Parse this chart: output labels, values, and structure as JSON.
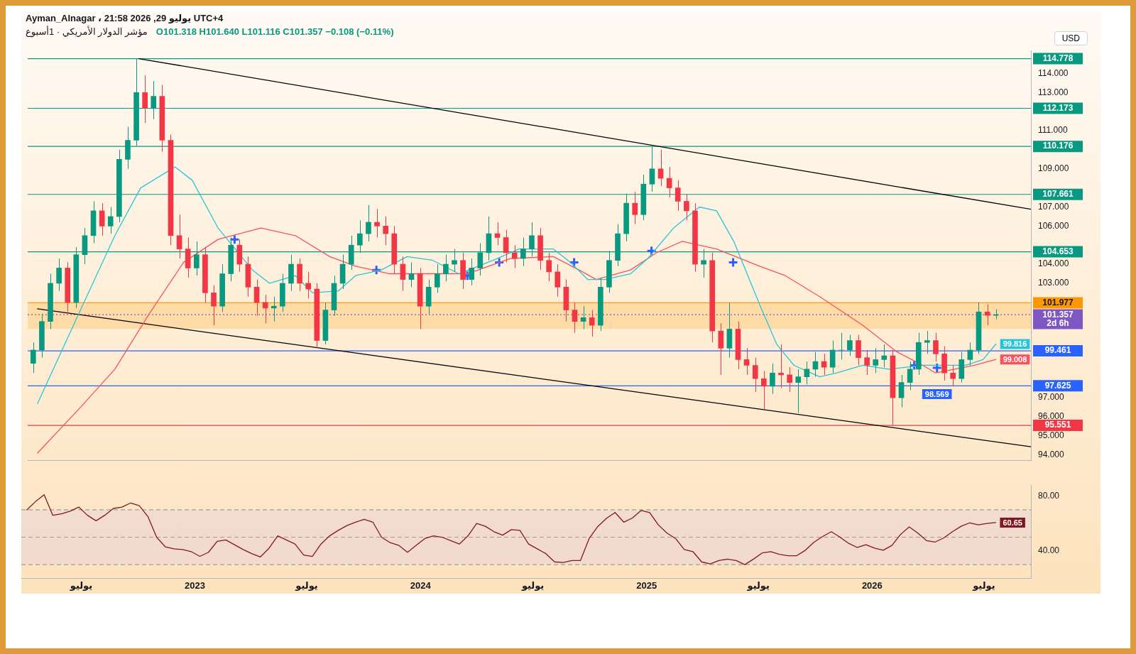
{
  "chart_data": [
    {
      "type": "candlestick",
      "title": "مؤشر الدولار الأمريكي · 1أسبوع",
      "subtitle": "O101.318 H101.640 L101.116 C101.357 −0.108 (−0.11%)",
      "ylabel": "USD",
      "annotations": [
        "Ayman_Alnagar ، 21:58 2026 ,29 يوليو UTC+4"
      ],
      "x": [
        "2022-04-04",
        "2022-04-18",
        "2022-05-02",
        "2022-05-16",
        "2022-05-30",
        "2022-06-13",
        "2022-06-27",
        "2022-07-11",
        "2022-07-25",
        "2022-08-08",
        "2022-08-22",
        "2022-09-05",
        "2022-09-19",
        "2022-10-03",
        "2022-10-17",
        "2022-10-31",
        "2022-11-14",
        "2022-11-28",
        "2022-12-12",
        "2022-12-26",
        "2023-01-09",
        "2023-01-23",
        "2023-02-06",
        "2023-02-20",
        "2023-03-06",
        "2023-03-20",
        "2023-04-03",
        "2023-04-17",
        "2023-05-01",
        "2023-05-15",
        "2023-05-29",
        "2023-06-12",
        "2023-06-26",
        "2023-07-10",
        "2023-07-24",
        "2023-08-07",
        "2023-08-21",
        "2023-09-04",
        "2023-09-18",
        "2023-10-02",
        "2023-10-16",
        "2023-10-30",
        "2023-11-13",
        "2023-11-27",
        "2023-12-11",
        "2023-12-25",
        "2024-01-08",
        "2024-01-22",
        "2024-02-05",
        "2024-02-19",
        "2024-03-04",
        "2024-03-18",
        "2024-04-01",
        "2024-04-15",
        "2024-04-29",
        "2024-05-13",
        "2024-05-27",
        "2024-06-10",
        "2024-06-24",
        "2024-07-08",
        "2024-07-22",
        "2024-08-05",
        "2024-08-19",
        "2024-09-02",
        "2024-09-16",
        "2024-09-30",
        "2024-10-14",
        "2024-10-28",
        "2024-11-11",
        "2024-11-25",
        "2024-12-09",
        "2024-12-23",
        "2025-01-06",
        "2025-01-20",
        "2025-02-03",
        "2025-02-17",
        "2025-03-03",
        "2025-03-17",
        "2025-03-31",
        "2025-04-14",
        "2025-04-28",
        "2025-05-12",
        "2025-05-26",
        "2025-06-09",
        "2025-06-23",
        "2025-07-07",
        "2025-07-21",
        "2025-08-04",
        "2025-08-18",
        "2025-09-01",
        "2025-09-15",
        "2025-09-29",
        "2025-10-13",
        "2025-10-27",
        "2025-11-10",
        "2025-11-24",
        "2025-12-08",
        "2025-12-22",
        "2026-01-05",
        "2026-01-19",
        "2026-02-02",
        "2026-02-16",
        "2026-03-02",
        "2026-03-16",
        "2026-03-30",
        "2026-04-13",
        "2026-04-27",
        "2026-05-11",
        "2026-05-25",
        "2026-06-08",
        "2026-06-22",
        "2026-07-06",
        "2026-07-20"
      ],
      "ohlc": [
        [
          98.8,
          99.9,
          98.3,
          99.5
        ],
        [
          99.5,
          101.4,
          99.1,
          101
        ],
        [
          101,
          103.5,
          100.6,
          103
        ],
        [
          103,
          104.3,
          102.6,
          103.8
        ],
        [
          103.8,
          104.1,
          101.5,
          102
        ],
        [
          102,
          104.9,
          101.7,
          104.5
        ],
        [
          104.5,
          105.9,
          104,
          105.5
        ],
        [
          105.5,
          107.3,
          105.1,
          106.8
        ],
        [
          106.8,
          107.2,
          105.5,
          106
        ],
        [
          106,
          107,
          105.6,
          106.5
        ],
        [
          106.5,
          110,
          106.2,
          109.5
        ],
        [
          109.5,
          111.2,
          109,
          110.5
        ],
        [
          110.5,
          114.778,
          110.2,
          113
        ],
        [
          113,
          113.9,
          111.4,
          112.2
        ],
        [
          112.2,
          113.6,
          111.6,
          112.8
        ],
        [
          112.8,
          113.4,
          109.9,
          110.5
        ],
        [
          110.5,
          110.8,
          105,
          105.5
        ],
        [
          105.5,
          106.6,
          104.3,
          104.8
        ],
        [
          104.8,
          105.4,
          103.3,
          103.8
        ],
        [
          103.8,
          105.2,
          103.4,
          104.5
        ],
        [
          104.5,
          104.9,
          102,
          102.5
        ],
        [
          102.5,
          102.9,
          100.8,
          101.8
        ],
        [
          101.8,
          104,
          101.5,
          103.5
        ],
        [
          103.5,
          105.4,
          103.1,
          105
        ],
        [
          105,
          105.3,
          103.6,
          104
        ],
        [
          104,
          104.4,
          102.3,
          102.8
        ],
        [
          102.8,
          103.2,
          101.3,
          102
        ],
        [
          102,
          102.4,
          100.9,
          101.7
        ],
        [
          101.7,
          102.3,
          101,
          101.8
        ],
        [
          101.8,
          103.5,
          101.5,
          103
        ],
        [
          103,
          104.5,
          102.6,
          104
        ],
        [
          104,
          104.3,
          102.6,
          103
        ],
        [
          103,
          103.6,
          102.2,
          102.7
        ],
        [
          102.7,
          103,
          99.6,
          100
        ],
        [
          100,
          102,
          99.8,
          101.6
        ],
        [
          101.6,
          103.4,
          101.3,
          103
        ],
        [
          103,
          104.5,
          102.7,
          104
        ],
        [
          104,
          105.5,
          103.7,
          105
        ],
        [
          105,
          106.3,
          104.6,
          105.6
        ],
        [
          105.6,
          107.1,
          105.2,
          106.2
        ],
        [
          106.2,
          106.9,
          105.4,
          106
        ],
        [
          106,
          106.5,
          105,
          105.6
        ],
        [
          105.6,
          106,
          103.5,
          104
        ],
        [
          104,
          104.4,
          102.6,
          103.2
        ],
        [
          103.2,
          104.1,
          102.8,
          103.5
        ],
        [
          103.5,
          103.8,
          100.6,
          101.8
        ],
        [
          101.8,
          103.2,
          101.4,
          102.8
        ],
        [
          102.8,
          104,
          102.5,
          103.5
        ],
        [
          103.5,
          104.5,
          103.1,
          104
        ],
        [
          104,
          104.8,
          103.6,
          104.2
        ],
        [
          104.2,
          104.6,
          102.7,
          103.2
        ],
        [
          103.2,
          104.3,
          102.9,
          103.8
        ],
        [
          103.8,
          105.1,
          103.4,
          104.6
        ],
        [
          104.6,
          106.5,
          104.2,
          105.6
        ],
        [
          105.6,
          106.2,
          105,
          105.4
        ],
        [
          105.4,
          105.8,
          104.1,
          104.6
        ],
        [
          104.6,
          105,
          103.8,
          104.3
        ],
        [
          104.3,
          105.4,
          103.9,
          104.8
        ],
        [
          104.8,
          106.2,
          104.4,
          105.5
        ],
        [
          105.5,
          105.9,
          103.7,
          104.2
        ],
        [
          104.2,
          104.6,
          103.1,
          103.6
        ],
        [
          103.6,
          104,
          102.3,
          102.8
        ],
        [
          102.8,
          103.2,
          101,
          101.6
        ],
        [
          101.6,
          102,
          100.4,
          101
        ],
        [
          101,
          101.8,
          100.6,
          101.2
        ],
        [
          101.2,
          101.6,
          100.2,
          100.8
        ],
        [
          100.8,
          103.3,
          100.5,
          102.8
        ],
        [
          102.8,
          104.7,
          102.5,
          104.2
        ],
        [
          104.2,
          106.1,
          103.9,
          105.6
        ],
        [
          105.6,
          107.7,
          105.2,
          107.2
        ],
        [
          107.2,
          107.8,
          106.1,
          106.6
        ],
        [
          106.6,
          108.7,
          106.3,
          108.2
        ],
        [
          108.2,
          110.176,
          107.8,
          109
        ],
        [
          109,
          110,
          108.1,
          108.5
        ],
        [
          108.5,
          109.1,
          107.5,
          108
        ],
        [
          108,
          108.4,
          106.8,
          107.3
        ],
        [
          107.3,
          107.661,
          106.3,
          106.8
        ],
        [
          106.8,
          107.2,
          103.6,
          104
        ],
        [
          104,
          104.8,
          103.3,
          104.2
        ],
        [
          104.2,
          104.6,
          99.9,
          100.5
        ],
        [
          100.5,
          100.9,
          98.2,
          99.6
        ],
        [
          99.6,
          101.977,
          99.1,
          100.6
        ],
        [
          100.6,
          101,
          98.5,
          99
        ],
        [
          99,
          99.6,
          98.2,
          98.7
        ],
        [
          98.7,
          99.1,
          97.3,
          98
        ],
        [
          98,
          98.4,
          96.4,
          97.6
        ],
        [
          97.6,
          98.8,
          97.2,
          98.3
        ],
        [
          98.3,
          99.8,
          97.5,
          98.2
        ],
        [
          98.2,
          98.6,
          97.3,
          97.8
        ],
        [
          97.8,
          98.5,
          96.2,
          98.1
        ],
        [
          98.1,
          98.9,
          97.7,
          98.5
        ],
        [
          98.5,
          99.4,
          98.1,
          98.9
        ],
        [
          98.9,
          99.3,
          98.2,
          98.6
        ],
        [
          98.6,
          100,
          98.3,
          99.5
        ],
        [
          99.5,
          100.4,
          99,
          99.5
        ],
        [
          99.5,
          100.3,
          99.2,
          100
        ],
        [
          100,
          100.3,
          98.7,
          99.1
        ],
        [
          99.1,
          99.5,
          98.2,
          98.7
        ],
        [
          98.7,
          99.6,
          98.3,
          99
        ],
        [
          99,
          99.8,
          98.6,
          99.2
        ],
        [
          99.2,
          99.5,
          95.551,
          97
        ],
        [
          97,
          98.2,
          96.5,
          97.8
        ],
        [
          97.8,
          98.9,
          97.4,
          98.5
        ],
        [
          98.5,
          100.4,
          98.2,
          99.9
        ],
        [
          99.9,
          100.5,
          99.3,
          100
        ],
        [
          100,
          100.4,
          98.9,
          99.3
        ],
        [
          99.3,
          99.7,
          97.9,
          98.3
        ],
        [
          98.3,
          98.7,
          97.625,
          98
        ],
        [
          98,
          99.4,
          97.8,
          99
        ],
        [
          99,
          99.9,
          98.7,
          99.5
        ],
        [
          99.5,
          102,
          99.3,
          101.5
        ],
        [
          101.5,
          101.9,
          100.8,
          101.318
        ],
        [
          101.318,
          101.64,
          101.116,
          101.357
        ]
      ],
      "colors": [
        "#089981",
        "#089981",
        "#089981",
        "#089981",
        "#f23645",
        "#089981",
        "#089981",
        "#089981",
        "#f23645",
        "#089981",
        "#089981",
        "#089981",
        "#089981",
        "#f23645",
        "#089981",
        "#f23645",
        "#f23645",
        "#f23645",
        "#f23645",
        "#089981",
        "#f23645",
        "#f23645",
        "#089981",
        "#089981",
        "#f23645",
        "#f23645",
        "#f23645",
        "#f23645",
        "#089981",
        "#089981",
        "#089981",
        "#f23645",
        "#f23645",
        "#f23645",
        "#089981",
        "#089981",
        "#089981",
        "#089981",
        "#089981",
        "#089981",
        "#f23645",
        "#f23645",
        "#f23645",
        "#f23645",
        "#089981",
        "#f23645",
        "#089981",
        "#089981",
        "#089981",
        "#089981",
        "#f23645",
        "#089981",
        "#089981",
        "#089981",
        "#f23645",
        "#f23645",
        "#f23645",
        "#089981",
        "#089981",
        "#f23645",
        "#f23645",
        "#f23645",
        "#f23645",
        "#f23645",
        "#089981",
        "#f23645",
        "#089981",
        "#089981",
        "#089981",
        "#089981",
        "#f23645",
        "#089981",
        "#089981",
        "#f23645",
        "#f23645",
        "#f23645",
        "#f23645",
        "#f23645",
        "#089981",
        "#f23645",
        "#f23645",
        "#089981",
        "#f23645",
        "#f23645",
        "#f23645",
        "#f23645",
        "#089981",
        "#f23645",
        "#f23645",
        "#089981",
        "#089981",
        "#089981",
        "#f23645",
        "#089981",
        "#089981",
        "#089981",
        "#f23645",
        "#f23645",
        "#089981",
        "#089981",
        "#f23645",
        "#089981",
        "#089981",
        "#089981",
        "#089981",
        "#f23645",
        "#f23645",
        "#f23645",
        "#089981",
        "#089981",
        "#089981",
        "#f23645",
        "#089981"
      ],
      "series": [
        {
          "type": "line",
          "color": "#26c6da",
          "x": [
            "2022-04-11",
            "2022-06-20",
            "2022-08-15",
            "2022-09-26",
            "2022-11-21",
            "2022-12-19",
            "2023-01-30",
            "2023-03-27",
            "2023-04-24",
            "2023-06-05",
            "2023-07-03",
            "2023-08-14",
            "2023-09-11",
            "2023-10-23",
            "2023-12-04",
            "2024-01-15",
            "2024-02-26",
            "2024-04-22",
            "2024-06-03",
            "2024-07-29",
            "2024-08-26",
            "2024-09-23",
            "2024-10-21",
            "2024-12-02",
            "2024-12-30",
            "2025-02-10",
            "2025-03-24",
            "2025-04-21",
            "2025-05-19",
            "2025-06-30",
            "2025-07-28",
            "2025-08-25",
            "2025-10-06",
            "2025-11-03",
            "2025-12-15",
            "2026-01-26",
            "2026-03-23",
            "2026-04-20",
            "2026-06-01",
            "2026-06-29",
            "2026-07-20"
          ],
          "values": [
            96.7,
            101.6,
            105.5,
            108,
            109.1,
            108.4,
            105.9,
            103.7,
            103,
            103.4,
            102.5,
            102.6,
            103.4,
            103.7,
            104.4,
            104.2,
            103.5,
            104.2,
            104.8,
            104.8,
            104.1,
            103.2,
            103.2,
            103.5,
            104.3,
            105.9,
            107,
            106.8,
            105.2,
            101.9,
            99.8,
            98.7,
            98.1,
            98.3,
            98.7,
            98.5,
            98.7,
            98.7,
            98.7,
            99,
            99.816
          ],
          "value_labels": [
            null,
            null,
            null,
            null,
            null,
            null,
            null,
            null,
            null,
            null,
            null,
            null,
            null,
            null,
            null,
            null,
            null,
            null,
            null,
            null,
            null,
            null,
            null,
            null,
            null,
            null,
            null,
            null,
            null,
            null,
            null,
            null,
            null,
            null,
            null,
            null,
            null,
            null,
            null,
            null,
            "99.816"
          ]
        },
        {
          "type": "line",
          "color": "#f7525f",
          "x": [
            "2022-04-11",
            "2022-06-20",
            "2022-08-15",
            "2022-10-10",
            "2022-12-05",
            "2023-01-30",
            "2023-04-10",
            "2023-06-05",
            "2023-07-31",
            "2023-09-11",
            "2023-11-06",
            "2024-01-15",
            "2024-03-11",
            "2024-05-20",
            "2024-07-29",
            "2024-09-09",
            "2024-10-07",
            "2024-12-02",
            "2025-01-13",
            "2025-02-24",
            "2025-04-21",
            "2025-06-30",
            "2025-08-11",
            "2025-10-06",
            "2025-12-15",
            "2026-02-09",
            "2026-03-23",
            "2026-04-13",
            "2026-06-15",
            "2026-07-20"
          ],
          "values": [
            94.1,
            96.5,
            98.5,
            101.4,
            104.1,
            105.3,
            105.9,
            105.5,
            104.4,
            103.9,
            103.5,
            103.5,
            103.5,
            104.3,
            104.4,
            103.7,
            103.2,
            103.7,
            104.6,
            105.2,
            104.8,
            103.9,
            103.4,
            102.3,
            100.8,
            99.4,
            98.7,
            98.3,
            98.7,
            99.008
          ],
          "value_labels": [
            null,
            null,
            null,
            null,
            null,
            null,
            null,
            null,
            null,
            null,
            null,
            null,
            null,
            null,
            null,
            null,
            null,
            null,
            null,
            null,
            null,
            null,
            null,
            null,
            null,
            null,
            null,
            null,
            null,
            "99.008"
          ]
        },
        {
          "type": "line",
          "color": "#000000",
          "x": [
            "2022-09-23",
            "2026-09-15"
          ],
          "values": [
            114.778,
            106.88
          ]
        },
        {
          "type": "line",
          "color": "#000000",
          "x": [
            "2022-04-11",
            "2026-09-15"
          ],
          "values": [
            101.66,
            94.43
          ]
        },
        {
          "type": "scatter",
          "marker": "cross",
          "color": "#2962ff",
          "x": [
            "2023-02-26",
            "2023-10-15",
            "2024-03-11",
            "2024-05-02",
            "2024-09-01",
            "2025-01-05",
            "2025-05-18",
            "2026-03-09",
            "2026-04-15"
          ],
          "values": [
            105.3,
            103.7,
            103.4,
            104.1,
            104.1,
            104.7,
            104.1,
            98.7,
            98.569
          ],
          "value_labels": [
            null,
            null,
            null,
            null,
            null,
            null,
            null,
            null,
            "98.569"
          ]
        }
      ],
      "ref_lines": [
        {
          "axis": "y",
          "value": 114.778,
          "label": "114.778",
          "color": "#089981"
        },
        {
          "axis": "y",
          "value": 112.173,
          "label": "112.173",
          "color": "#089981"
        },
        {
          "axis": "y",
          "value": 110.176,
          "label": "110.176",
          "color": "#089981"
        },
        {
          "axis": "y",
          "value": 107.661,
          "label": "107.661",
          "color": "#089981"
        },
        {
          "axis": "y",
          "value": 104.653,
          "label": "104.653",
          "color": "#089981"
        },
        {
          "axis": "y",
          "value": 101.977,
          "label": "101.977",
          "color": "#ff9800"
        },
        {
          "axis": "y",
          "value": 101.357,
          "label": "101.357\n2d 6h",
          "color": "#7e57c2",
          "line_style": "dotted"
        },
        {
          "axis": "y",
          "value": 99.461,
          "label": "99.461",
          "color": "#2962ff"
        },
        {
          "axis": "y",
          "value": 97.625,
          "label": "97.625",
          "color": "#2962ff"
        },
        {
          "axis": "y",
          "value": 95.551,
          "label": "95.551",
          "color": "#f23645"
        }
      ],
      "bands": [
        {
          "axis": "y",
          "from": 100.62,
          "to": 101.95,
          "color": "#ffcc80"
        }
      ],
      "xlim": [
        "2022-03-26",
        "2026-09-15"
      ],
      "ylim": [
        93.7,
        115.2
      ],
      "tick_labels": "y",
      "yticks": [
        {
          "value": 94,
          "label": "94.000"
        },
        {
          "value": 95,
          "label": "95.000"
        },
        {
          "value": 96,
          "label": "96.000"
        },
        {
          "value": 97,
          "label": "97.000"
        },
        {
          "value": 103,
          "label": "103.000"
        },
        {
          "value": 104,
          "label": "104.000"
        },
        {
          "value": 106,
          "label": "106.000"
        },
        {
          "value": 107,
          "label": "107.000"
        },
        {
          "value": 109,
          "label": "109.000"
        },
        {
          "value": 111,
          "label": "111.000"
        },
        {
          "value": 113,
          "label": "113.000"
        },
        {
          "value": 114,
          "label": "114.000"
        }
      ]
    },
    {
      "type": "line",
      "x": [
        "2022-04-04",
        "2022-04-18",
        "2022-05-02",
        "2022-05-16",
        "2022-05-30",
        "2022-06-13",
        "2022-06-27",
        "2022-07-11",
        "2022-07-25",
        "2022-08-08",
        "2022-08-22",
        "2022-09-05",
        "2022-09-19",
        "2022-10-03",
        "2022-10-17",
        "2022-10-31",
        "2022-11-14",
        "2022-11-28",
        "2022-12-12",
        "2022-12-26",
        "2023-01-09",
        "2023-01-23",
        "2023-02-06",
        "2023-02-20",
        "2023-03-06",
        "2023-03-20",
        "2023-04-03",
        "2023-04-17",
        "2023-05-01",
        "2023-05-15",
        "2023-05-29",
        "2023-06-12",
        "2023-06-26",
        "2023-07-10",
        "2023-07-24",
        "2023-08-07",
        "2023-08-21",
        "2023-09-04",
        "2023-09-18",
        "2023-10-02",
        "2023-10-16",
        "2023-10-30",
        "2023-11-13",
        "2023-11-27",
        "2023-12-11",
        "2023-12-25",
        "2024-01-08",
        "2024-01-22",
        "2024-02-05",
        "2024-02-19",
        "2024-03-04",
        "2024-03-18",
        "2024-04-01",
        "2024-04-15",
        "2024-04-29",
        "2024-05-13",
        "2024-05-27",
        "2024-06-10",
        "2024-06-24",
        "2024-07-08",
        "2024-07-22",
        "2024-08-05",
        "2024-08-19",
        "2024-09-02",
        "2024-09-16",
        "2024-09-30",
        "2024-10-14",
        "2024-10-28",
        "2024-11-11",
        "2024-11-25",
        "2024-12-09",
        "2024-12-23",
        "2025-01-06",
        "2025-01-20",
        "2025-02-03",
        "2025-02-17",
        "2025-03-03",
        "2025-03-17",
        "2025-03-31",
        "2025-04-14",
        "2025-04-28",
        "2025-05-12",
        "2025-05-26",
        "2025-06-09",
        "2025-06-23",
        "2025-07-07",
        "2025-07-21",
        "2025-08-04",
        "2025-08-18",
        "2025-09-01",
        "2025-09-15",
        "2025-09-29",
        "2025-10-13",
        "2025-10-27",
        "2025-11-10",
        "2025-11-24",
        "2025-12-08",
        "2025-12-22",
        "2026-01-05",
        "2026-01-19",
        "2026-02-02",
        "2026-02-16",
        "2026-03-02",
        "2026-03-16",
        "2026-03-30",
        "2026-04-13",
        "2026-04-27",
        "2026-05-11",
        "2026-05-25",
        "2026-06-08",
        "2026-06-22",
        "2026-07-06",
        "2026-07-20"
      ],
      "series": [
        {
          "color": "#801922",
          "values": [
            70,
            76,
            81,
            66,
            67,
            69,
            72,
            66,
            62,
            66,
            71,
            72,
            75,
            73,
            65,
            50,
            43,
            41.5,
            41,
            39.5,
            36,
            39,
            47,
            48,
            44.5,
            41,
            38,
            35.6,
            42,
            51,
            48,
            45,
            37,
            36,
            45,
            51,
            55,
            58.5,
            61,
            63,
            61,
            50,
            46,
            44,
            39,
            44,
            49,
            51,
            50,
            47.5,
            45,
            51,
            60,
            58,
            54,
            51.5,
            55.5,
            55,
            45,
            41.5,
            38,
            32,
            31.5,
            33,
            33,
            49,
            57.8,
            63.7,
            68,
            61,
            64,
            69.5,
            68,
            59,
            53,
            49,
            41,
            39.5,
            32,
            30.5,
            33,
            34,
            33,
            30,
            34,
            38.5,
            39.5,
            37.5,
            36.5,
            36.5,
            40.5,
            46.4,
            50.5,
            54,
            50,
            45.5,
            42.5,
            44.5,
            42,
            40.5,
            44,
            52,
            57.5,
            53,
            47.5,
            46.5,
            49.5,
            54,
            58,
            60.5,
            59,
            60,
            60.65
          ],
          "value_labels": [
            null,
            null,
            null,
            null,
            null,
            null,
            null,
            null,
            null,
            null,
            null,
            null,
            null,
            null,
            null,
            null,
            null,
            null,
            null,
            null,
            null,
            null,
            null,
            null,
            null,
            null,
            null,
            null,
            null,
            null,
            null,
            null,
            null,
            null,
            null,
            null,
            null,
            null,
            null,
            null,
            null,
            null,
            null,
            null,
            null,
            null,
            null,
            null,
            null,
            null,
            null,
            null,
            null,
            null,
            null,
            null,
            null,
            null,
            null,
            null,
            null,
            null,
            null,
            null,
            null,
            null,
            null,
            null,
            null,
            null,
            null,
            null,
            null,
            null,
            null,
            null,
            null,
            null,
            null,
            null,
            null,
            null,
            null,
            null,
            null,
            null,
            null,
            null,
            null,
            null,
            null,
            null,
            null,
            null,
            null,
            null,
            null,
            null,
            null,
            null,
            null,
            null,
            null,
            null,
            null,
            null,
            null,
            null,
            null,
            null,
            null,
            null,
            "60.65"
          ]
        }
      ],
      "ref_lines": [
        {
          "axis": "y",
          "value": 70,
          "color": "#9e9e9e",
          "line_style": "dashed"
        },
        {
          "axis": "y",
          "value": 50,
          "color": "#9e9e9e",
          "line_style": "dashed"
        },
        {
          "axis": "y",
          "value": 30,
          "color": "#9e9e9e",
          "line_style": "dashed"
        }
      ],
      "bands": [
        {
          "axis": "y",
          "from": 30,
          "to": 70,
          "color": "#e9d3d6"
        }
      ],
      "xlim": [
        "2022-03-26",
        "2026-09-15"
      ],
      "xticks": [
        {
          "value": "2022-07",
          "label": "يوليو"
        },
        {
          "value": "2023",
          "label": "2023"
        },
        {
          "value": "2023-07",
          "label": "يوليو"
        },
        {
          "value": "2024",
          "label": "2024"
        },
        {
          "value": "2024-07",
          "label": "يوليو"
        },
        {
          "value": "2025",
          "label": "2025"
        },
        {
          "value": "2025-07",
          "label": "يوليو"
        },
        {
          "value": "2026",
          "label": "2026"
        },
        {
          "value": "2026-07",
          "label": "يوليو"
        }
      ],
      "ylim": [
        20,
        88
      ],
      "yticks": [
        {
          "value": 40,
          "label": "40.00"
        },
        {
          "value": 80,
          "label": "80.00"
        }
      ]
    }
  ]
}
